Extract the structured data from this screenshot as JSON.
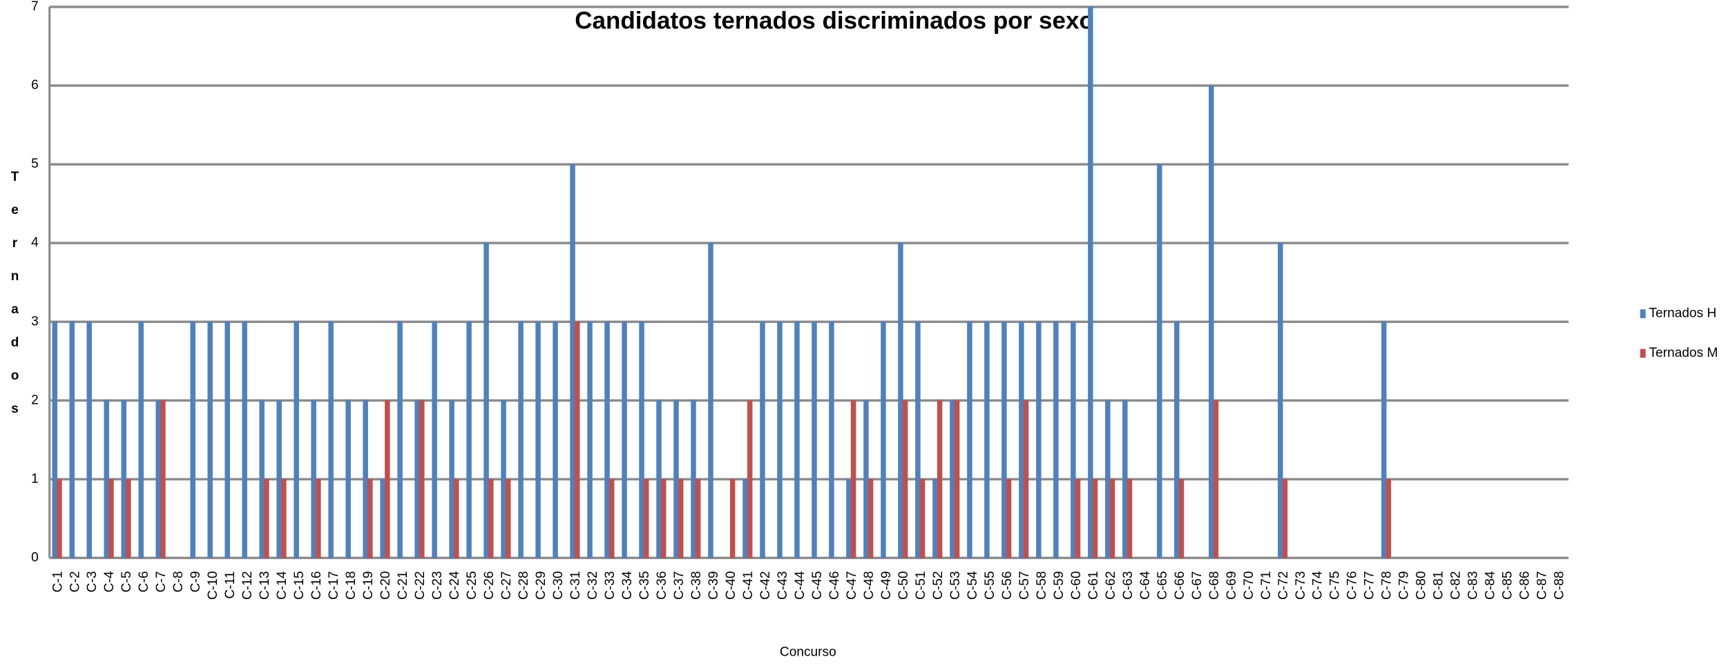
{
  "chart_data": {
    "type": "bar",
    "title": "Candidatos ternados discriminados por sexo",
    "x_label": "Concurso",
    "y_label": "Ternados",
    "categories": [
      "C-1",
      "C-2",
      "C-3",
      "C-4",
      "C-5",
      "C-6",
      "C-7",
      "C-8",
      "C-9",
      "C-10",
      "C-11",
      "C-12",
      "C-13",
      "C-14",
      "C-15",
      "C-16",
      "C-17",
      "C-18",
      "C-19",
      "C-20",
      "C-21",
      "C-22",
      "C-23",
      "C-24",
      "C-25",
      "C-26",
      "C-27",
      "C-28",
      "C-29",
      "C-30",
      "C-31",
      "C-32",
      "C-33",
      "C-34",
      "C-35",
      "C-36",
      "C-37",
      "C-38",
      "C-39",
      "C-40",
      "C-41",
      "C-42",
      "C-43",
      "C-44",
      "C-45",
      "C-46",
      "C-47",
      "C-48",
      "C-49",
      "C-50",
      "C-51",
      "C-52",
      "C-53",
      "C-54",
      "C-55",
      "C-56",
      "C-57",
      "C-58",
      "C-59",
      "C-60",
      "C-61",
      "C-62",
      "C-63",
      "C-64",
      "C-65",
      "C-66",
      "C-67",
      "C-68",
      "C-69",
      "C-70",
      "C-71",
      "C-72",
      "C-73",
      "C-74",
      "C-75",
      "C-76",
      "C-77",
      "C-78",
      "C-79",
      "C-80",
      "C-81",
      "C-82",
      "C-83",
      "C-84",
      "C-85",
      "C-86",
      "C-87",
      "C-88"
    ],
    "series": [
      {
        "name": "Ternados H",
        "color": "#4f81bd",
        "values": [
          3,
          3,
          3,
          2,
          2,
          3,
          2,
          0,
          3,
          3,
          3,
          3,
          2,
          2,
          3,
          2,
          3,
          2,
          2,
          1,
          3,
          2,
          3,
          2,
          3,
          4,
          2,
          3,
          3,
          3,
          5,
          3,
          3,
          3,
          3,
          2,
          2,
          2,
          4,
          0,
          1,
          3,
          3,
          3,
          3,
          3,
          1,
          2,
          3,
          4,
          3,
          1,
          2,
          3,
          3,
          3,
          3,
          3,
          3,
          3,
          7,
          2,
          2,
          0,
          5,
          3,
          0,
          6,
          0,
          0,
          0,
          4,
          0,
          0,
          0,
          0,
          0,
          3,
          0,
          0,
          0,
          0,
          0,
          0,
          0,
          0,
          0,
          0
        ]
      },
      {
        "name": "Ternados M",
        "color": "#c0504d",
        "values": [
          1,
          0,
          0,
          1,
          1,
          0,
          2,
          0,
          0,
          0,
          0,
          0,
          1,
          1,
          0,
          1,
          0,
          0,
          1,
          2,
          0,
          2,
          0,
          1,
          0,
          1,
          1,
          0,
          0,
          0,
          3,
          0,
          1,
          0,
          1,
          1,
          1,
          1,
          0,
          1,
          2,
          0,
          0,
          0,
          0,
          0,
          2,
          1,
          0,
          2,
          1,
          2,
          2,
          0,
          0,
          1,
          2,
          0,
          0,
          1,
          1,
          1,
          1,
          0,
          0,
          1,
          0,
          2,
          0,
          0,
          0,
          1,
          0,
          0,
          0,
          0,
          0,
          1,
          0,
          0,
          0,
          0,
          0,
          0,
          0,
          0,
          0,
          0
        ]
      }
    ],
    "ylim": [
      0,
      7
    ],
    "yticks": [
      0,
      1,
      2,
      3,
      4,
      5,
      6,
      7
    ],
    "grid": true,
    "legend": "right"
  }
}
